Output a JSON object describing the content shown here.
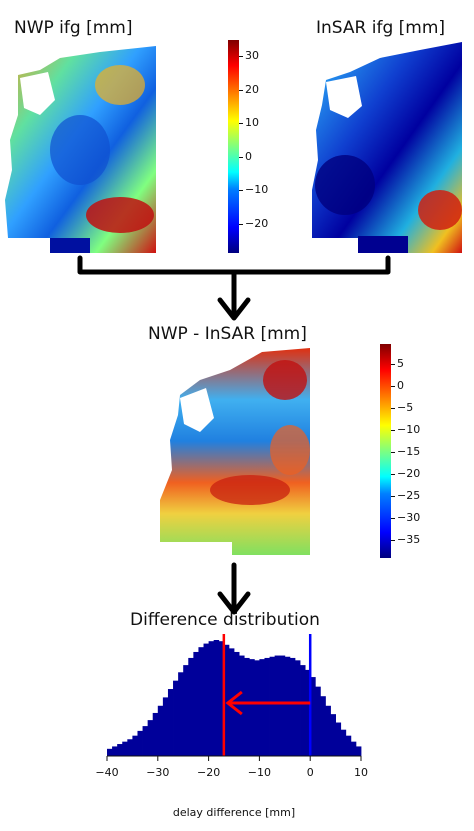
{
  "panels": {
    "nwp": {
      "title": "NWP ifg [mm]"
    },
    "insar": {
      "title": "InSAR ifg [mm]"
    },
    "diff": {
      "title": "NWP - InSAR [mm]"
    },
    "dist": {
      "title": "Difference distribution"
    }
  },
  "colorbar_top": {
    "ticks": [
      "30",
      "20",
      "10",
      "0",
      "−10",
      "−20"
    ]
  },
  "colorbar_diff": {
    "ticks": [
      "5",
      "0",
      "−5",
      "−10",
      "−15",
      "−20",
      "−25",
      "−30",
      "−35"
    ]
  },
  "chart_data": {
    "type": "bar",
    "title": "Difference distribution",
    "xlabel": "delay difference [mm]",
    "xlim": [
      -40,
      10
    ],
    "xticks": [
      "−40",
      "−30",
      "−20",
      "−10",
      "0",
      "10"
    ],
    "bin_centers": [
      -39.5,
      -38.5,
      -37.5,
      -36.5,
      -35.5,
      -34.5,
      -33.5,
      -32.5,
      -31.5,
      -30.5,
      -29.5,
      -28.5,
      -27.5,
      -26.5,
      -25.5,
      -24.5,
      -23.5,
      -22.5,
      -21.5,
      -20.5,
      -19.5,
      -18.5,
      -17.5,
      -16.5,
      -15.5,
      -14.5,
      -13.5,
      -12.5,
      -11.5,
      -10.5,
      -9.5,
      -8.5,
      -7.5,
      -6.5,
      -5.5,
      -4.5,
      -3.5,
      -2.5,
      -1.5,
      -0.5,
      0.5,
      1.5,
      2.5,
      3.5,
      4.5,
      5.5,
      6.5,
      7.5,
      8.5,
      9.5
    ],
    "counts": [
      6,
      8,
      10,
      12,
      14,
      17,
      21,
      25,
      30,
      36,
      42,
      49,
      56,
      63,
      70,
      76,
      82,
      87,
      91,
      94,
      96,
      97,
      96,
      93,
      90,
      87,
      84,
      82,
      81,
      80,
      81,
      82,
      83,
      84,
      84,
      83,
      82,
      80,
      76,
      72,
      66,
      58,
      50,
      42,
      35,
      28,
      22,
      17,
      12,
      8
    ],
    "lines": [
      {
        "x": -17,
        "color": "#ff0000"
      },
      {
        "x": 0,
        "color": "#0000ff"
      }
    ],
    "arrow": {
      "from": 0,
      "to": -17,
      "color": "#ff0000"
    }
  }
}
